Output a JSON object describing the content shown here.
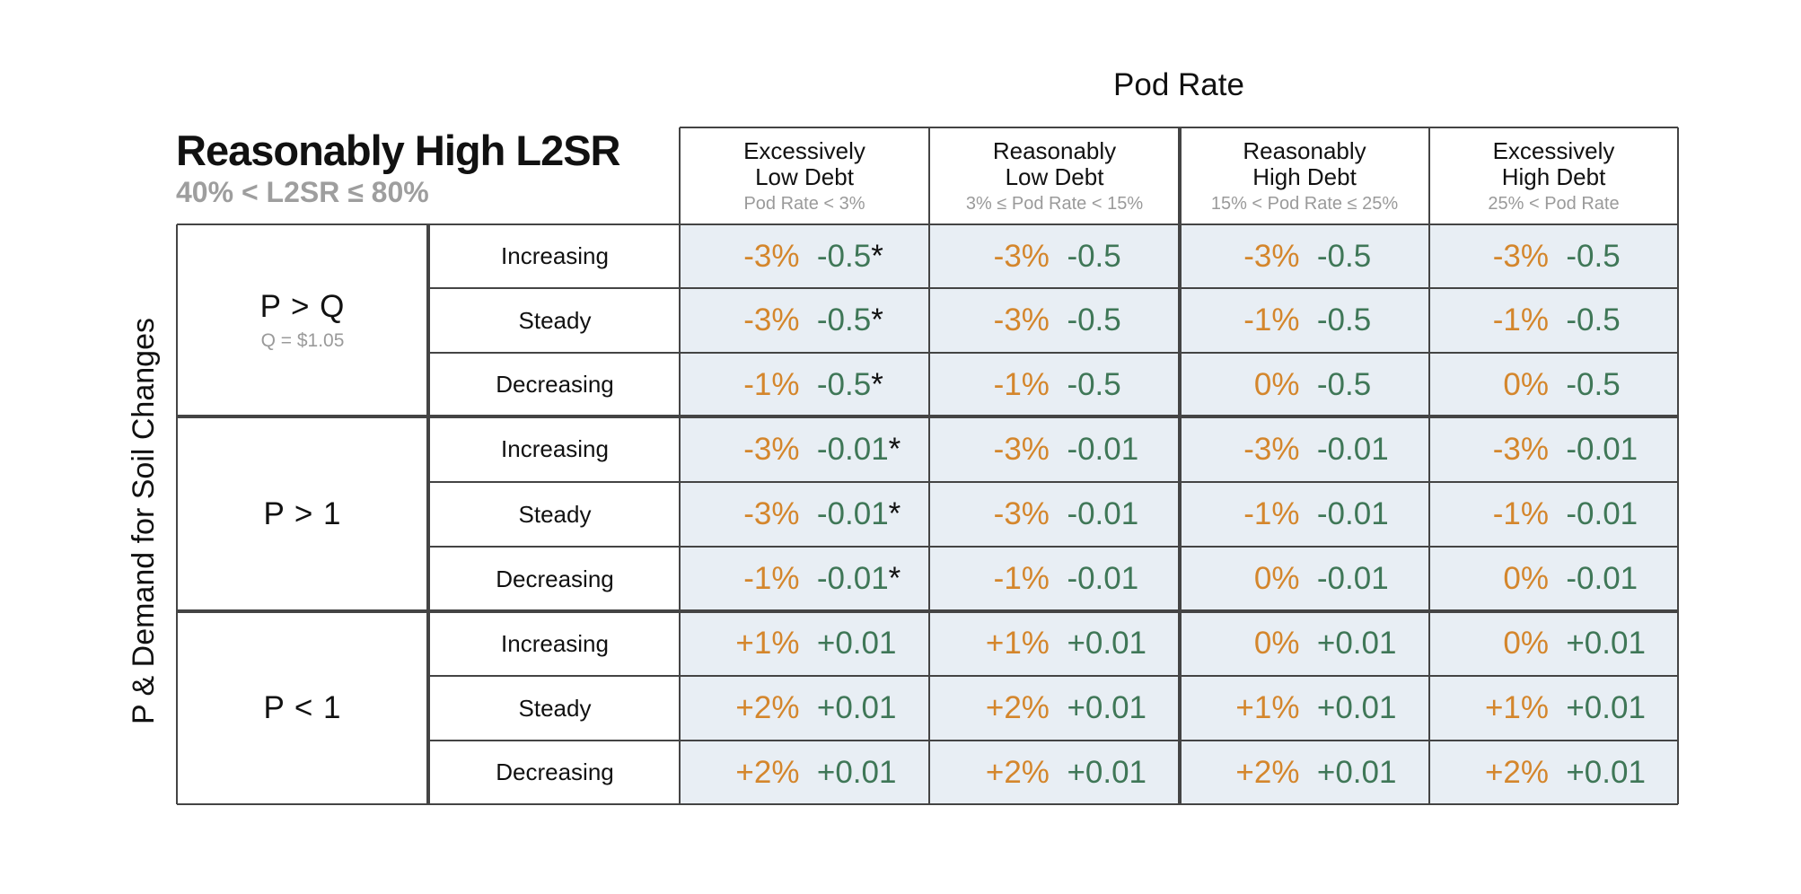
{
  "column_axis_label": "Pod Rate",
  "row_axis_label": "P & Demand for Soil Changes",
  "title": "Reasonably High L2SR",
  "subtitle": "40% < L2SR ≤ 80%",
  "columns": [
    {
      "line1": "Excessively",
      "line2": "Low Debt",
      "range": "Pod Rate < 3%"
    },
    {
      "line1": "Reasonably",
      "line2": "Low Debt",
      "range": "3% ≤ Pod Rate < 15%"
    },
    {
      "line1": "Reasonably",
      "line2": "High Debt",
      "range": "15% < Pod Rate ≤ 25%"
    },
    {
      "line1": "Excessively",
      "line2": "High Debt",
      "range": "25% < Pod Rate"
    }
  ],
  "groups": [
    {
      "label": "P > Q",
      "note": "Q = $1.05"
    },
    {
      "label": "P > 1",
      "note": ""
    },
    {
      "label": "P < 1",
      "note": ""
    }
  ],
  "trends": [
    "Increasing",
    "Steady",
    "Decreasing",
    "Increasing",
    "Steady",
    "Decreasing",
    "Increasing",
    "Steady",
    "Decreasing"
  ],
  "cells": [
    [
      {
        "pct": "-3%",
        "amt": "-0.5",
        "star": "*"
      },
      {
        "pct": "-3%",
        "amt": "-0.5",
        "star": ""
      },
      {
        "pct": "-3%",
        "amt": "-0.5",
        "star": ""
      },
      {
        "pct": "-3%",
        "amt": "-0.5",
        "star": ""
      }
    ],
    [
      {
        "pct": "-3%",
        "amt": "-0.5",
        "star": "*"
      },
      {
        "pct": "-3%",
        "amt": "-0.5",
        "star": ""
      },
      {
        "pct": "-1%",
        "amt": "-0.5",
        "star": ""
      },
      {
        "pct": "-1%",
        "amt": "-0.5",
        "star": ""
      }
    ],
    [
      {
        "pct": "-1%",
        "amt": "-0.5",
        "star": "*"
      },
      {
        "pct": "-1%",
        "amt": "-0.5",
        "star": ""
      },
      {
        "pct": "0%",
        "amt": "-0.5",
        "star": ""
      },
      {
        "pct": "0%",
        "amt": "-0.5",
        "star": ""
      }
    ],
    [
      {
        "pct": "-3%",
        "amt": "-0.01",
        "star": "*"
      },
      {
        "pct": "-3%",
        "amt": "-0.01",
        "star": ""
      },
      {
        "pct": "-3%",
        "amt": "-0.01",
        "star": ""
      },
      {
        "pct": "-3%",
        "amt": "-0.01",
        "star": ""
      }
    ],
    [
      {
        "pct": "-3%",
        "amt": "-0.01",
        "star": "*"
      },
      {
        "pct": "-3%",
        "amt": "-0.01",
        "star": ""
      },
      {
        "pct": "-1%",
        "amt": "-0.01",
        "star": ""
      },
      {
        "pct": "-1%",
        "amt": "-0.01",
        "star": ""
      }
    ],
    [
      {
        "pct": "-1%",
        "amt": "-0.01",
        "star": "*"
      },
      {
        "pct": "-1%",
        "amt": "-0.01",
        "star": ""
      },
      {
        "pct": "0%",
        "amt": "-0.01",
        "star": ""
      },
      {
        "pct": "0%",
        "amt": "-0.01",
        "star": ""
      }
    ],
    [
      {
        "pct": "+1%",
        "amt": "+0.01",
        "star": ""
      },
      {
        "pct": "+1%",
        "amt": "+0.01",
        "star": ""
      },
      {
        "pct": "0%",
        "amt": "+0.01",
        "star": ""
      },
      {
        "pct": "0%",
        "amt": "+0.01",
        "star": ""
      }
    ],
    [
      {
        "pct": "+2%",
        "amt": "+0.01",
        "star": ""
      },
      {
        "pct": "+2%",
        "amt": "+0.01",
        "star": ""
      },
      {
        "pct": "+1%",
        "amt": "+0.01",
        "star": ""
      },
      {
        "pct": "+1%",
        "amt": "+0.01",
        "star": ""
      }
    ],
    [
      {
        "pct": "+2%",
        "amt": "+0.01",
        "star": ""
      },
      {
        "pct": "+2%",
        "amt": "+0.01",
        "star": ""
      },
      {
        "pct": "+2%",
        "amt": "+0.01",
        "star": ""
      },
      {
        "pct": "+2%",
        "amt": "+0.01",
        "star": ""
      }
    ]
  ],
  "colors": {
    "percent": "#d4862c",
    "amount": "#3f7757",
    "data_background": "#e8eef4",
    "note_gray": "#9a9a9a",
    "subtitle_gray": "#9e9e9e"
  }
}
